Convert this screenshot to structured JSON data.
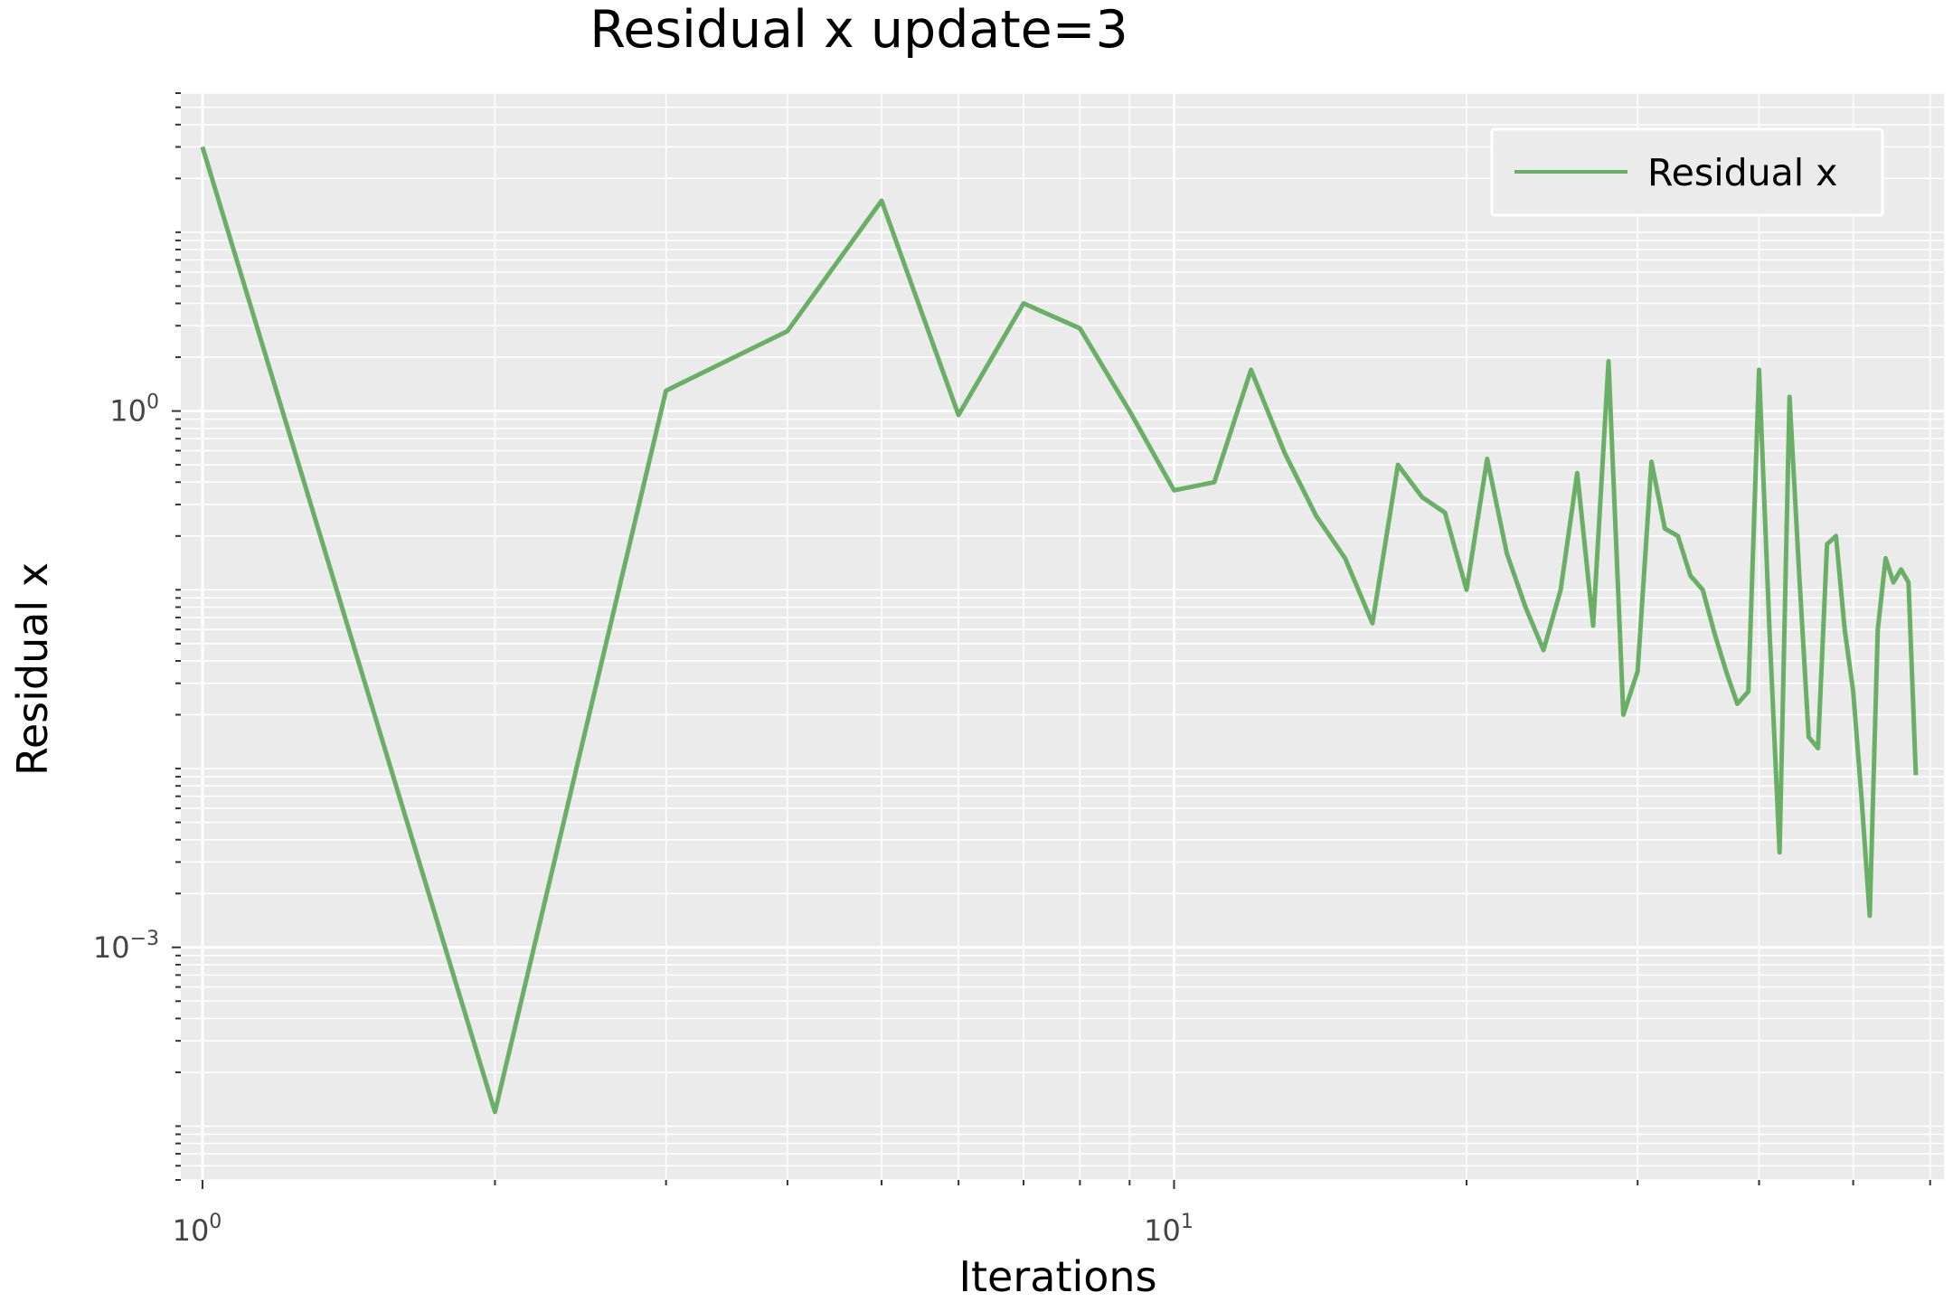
{
  "chart_data": {
    "type": "line",
    "title": "Residual x update=3",
    "xlabel": "Iterations",
    "ylabel": "Residual x",
    "xscale": "log",
    "yscale": "log",
    "xlim": [
      0.95,
      62
    ],
    "ylim": [
      5e-05,
      60
    ],
    "grid": true,
    "legend": {
      "placement": "top-right",
      "entries": [
        "Residual x"
      ]
    },
    "x_ticks": [
      {
        "base": "10",
        "exp": "0"
      },
      {
        "base": "10",
        "exp": "1"
      }
    ],
    "y_ticks": [
      {
        "base": "10",
        "exp": "0"
      },
      {
        "base": "10",
        "exp": "−3"
      }
    ],
    "series": [
      {
        "name": "Residual x",
        "color": "#6aaf66",
        "x": [
          1,
          2,
          3,
          4,
          5,
          6,
          7,
          8,
          9,
          10,
          11,
          12,
          13,
          14,
          15,
          16,
          17,
          18,
          19,
          20,
          21,
          22,
          23,
          24,
          25,
          26,
          27,
          28,
          29,
          30,
          31,
          32,
          33,
          34,
          35,
          36,
          37,
          38,
          39,
          40,
          41,
          42,
          43,
          44,
          45,
          46,
          47,
          48,
          49,
          50,
          51,
          52,
          53,
          54,
          55,
          56,
          57,
          58
        ],
        "y": [
          30,
          0.00012,
          1.3,
          2.8,
          15,
          0.95,
          4.0,
          2.9,
          1.0,
          0.36,
          0.4,
          1.7,
          0.58,
          0.26,
          0.15,
          0.065,
          0.5,
          0.33,
          0.27,
          0.1,
          0.54,
          0.16,
          0.08,
          0.046,
          0.1,
          0.45,
          0.063,
          1.9,
          0.02,
          0.035,
          0.52,
          0.22,
          0.2,
          0.12,
          0.1,
          0.057,
          0.035,
          0.023,
          0.027,
          1.7,
          0.06,
          0.0034,
          1.2,
          0.12,
          0.015,
          0.013,
          0.18,
          0.2,
          0.06,
          0.027,
          0.0068,
          0.0015,
          0.06,
          0.15,
          0.11,
          0.13,
          0.11,
          0.0092
        ]
      }
    ]
  }
}
